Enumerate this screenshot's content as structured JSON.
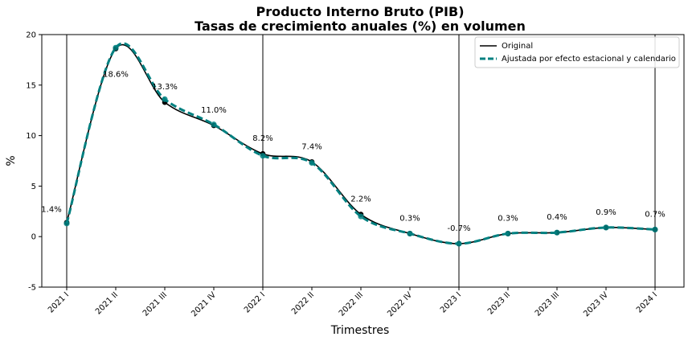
{
  "chart_data": {
    "type": "line",
    "title": "Producto Interno Bruto (PIB)",
    "subtitle": "Tasas de crecimiento anuales (%) en volumen",
    "xlabel": "Trimestres",
    "ylabel": "%",
    "ylim": [
      -5,
      20
    ],
    "yticks": [
      -5,
      0,
      5,
      10,
      15,
      20
    ],
    "categories": [
      "2021 I",
      "2021 II",
      "2021 III",
      "2021 IV",
      "2022 I",
      "2022 II",
      "2022 III",
      "2022 IV",
      "2023 I",
      "2023 II",
      "2023 III",
      "2023 IV",
      "2024 I"
    ],
    "series": [
      {
        "name": "Original",
        "color": "#000000",
        "style": "solid",
        "values": [
          1.4,
          18.6,
          13.3,
          11.0,
          8.2,
          7.4,
          2.2,
          0.3,
          -0.7,
          0.3,
          0.4,
          0.9,
          0.7
        ]
      },
      {
        "name": "Ajustada por efecto estacional y calendario",
        "color": "#008080",
        "style": "dashed",
        "values": [
          1.3,
          18.7,
          13.6,
          11.1,
          8.0,
          7.3,
          2.0,
          0.3,
          -0.7,
          0.3,
          0.4,
          0.9,
          0.7
        ]
      }
    ],
    "data_labels": [
      "1.4%",
      "18.6%",
      "13.3%",
      "11.0%",
      "8.2%",
      "7.4%",
      "2.2%",
      "0.3%",
      "-0.7%",
      "0.3%",
      "0.4%",
      "0.9%",
      "0.7%"
    ],
    "vertical_lines_at": [
      "2021 I",
      "2022 I",
      "2023 I",
      "2024 I"
    ],
    "legend_position": "top-right",
    "grid": false
  }
}
